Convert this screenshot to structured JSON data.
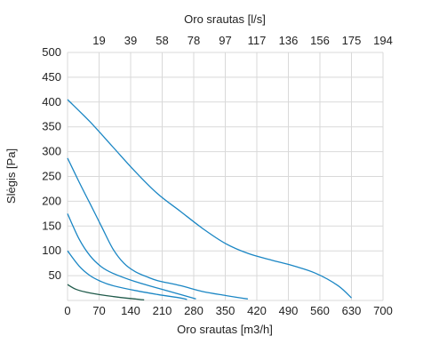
{
  "chart_data": {
    "type": "line",
    "top_xlabel": "Oro srautas [l/s]",
    "xlabel": "Oro srautas [m3/h]",
    "ylabel": "Slėgis [Pa]",
    "xlim": [
      0,
      700
    ],
    "ylim": [
      0,
      500
    ],
    "x_ticks": [
      "0",
      "70",
      "140",
      "210",
      "280",
      "350",
      "420",
      "490",
      "560",
      "630",
      "700"
    ],
    "top_ticks": [
      "19",
      "39",
      "58",
      "78",
      "97",
      "117",
      "136",
      "156",
      "175",
      "194"
    ],
    "y_ticks": [
      "50",
      "100",
      "150",
      "200",
      "250",
      "300",
      "350",
      "400",
      "450",
      "500"
    ],
    "grid": true,
    "colors": {
      "curve": "#1a86c4",
      "lowest_curve": "#1f5a4a",
      "grid": "#d9d9d9"
    },
    "series": [
      {
        "color": "#1a86c4",
        "points": [
          [
            0,
            405
          ],
          [
            50,
            360
          ],
          [
            100,
            310
          ],
          [
            150,
            260
          ],
          [
            200,
            215
          ],
          [
            250,
            180
          ],
          [
            300,
            145
          ],
          [
            350,
            115
          ],
          [
            400,
            95
          ],
          [
            450,
            82
          ],
          [
            500,
            70
          ],
          [
            550,
            55
          ],
          [
            600,
            30
          ],
          [
            630,
            5
          ]
        ]
      },
      {
        "color": "#1a86c4",
        "points": [
          [
            0,
            287
          ],
          [
            25,
            240
          ],
          [
            50,
            195
          ],
          [
            75,
            150
          ],
          [
            100,
            105
          ],
          [
            125,
            75
          ],
          [
            150,
            58
          ],
          [
            175,
            48
          ],
          [
            200,
            40
          ],
          [
            250,
            30
          ],
          [
            300,
            18
          ],
          [
            350,
            10
          ],
          [
            400,
            3
          ]
        ]
      },
      {
        "color": "#1a86c4",
        "points": [
          [
            0,
            175
          ],
          [
            25,
            125
          ],
          [
            50,
            90
          ],
          [
            75,
            68
          ],
          [
            100,
            55
          ],
          [
            150,
            38
          ],
          [
            200,
            25
          ],
          [
            250,
            12
          ],
          [
            285,
            3
          ]
        ]
      },
      {
        "color": "#1a86c4",
        "points": [
          [
            0,
            100
          ],
          [
            25,
            70
          ],
          [
            50,
            50
          ],
          [
            75,
            38
          ],
          [
            100,
            30
          ],
          [
            150,
            20
          ],
          [
            200,
            12
          ],
          [
            250,
            5
          ],
          [
            265,
            2
          ]
        ]
      },
      {
        "color": "#1f5a4a",
        "points": [
          [
            0,
            32
          ],
          [
            20,
            22
          ],
          [
            50,
            15
          ],
          [
            100,
            8
          ],
          [
            150,
            3
          ],
          [
            170,
            1
          ]
        ]
      }
    ]
  }
}
